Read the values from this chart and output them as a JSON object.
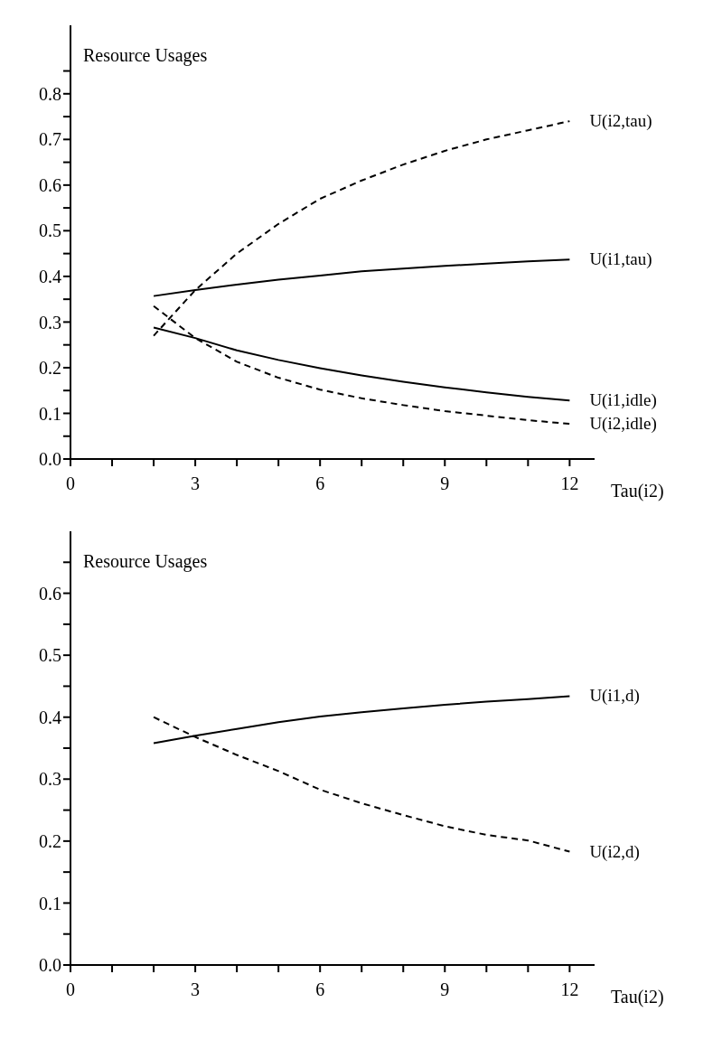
{
  "chart_data": [
    {
      "type": "line",
      "ylabel": "Resource Usages",
      "xlabel": "Tau(i2)",
      "xlim": [
        0,
        12.6
      ],
      "ylim": [
        0,
        0.95
      ],
      "xticks": [
        {
          "value": 0,
          "label": "0"
        },
        {
          "value": 1,
          "label": null
        },
        {
          "value": 2,
          "label": null
        },
        {
          "value": 3,
          "label": "3"
        },
        {
          "value": 4,
          "label": null
        },
        {
          "value": 5,
          "label": null
        },
        {
          "value": 6,
          "label": "6"
        },
        {
          "value": 7,
          "label": null
        },
        {
          "value": 8,
          "label": null
        },
        {
          "value": 9,
          "label": "9"
        },
        {
          "value": 10,
          "label": null
        },
        {
          "value": 11,
          "label": null
        },
        {
          "value": 12,
          "label": "12"
        }
      ],
      "yticks": [
        {
          "value": 0,
          "label": "0.0"
        },
        {
          "value": 0.05,
          "label": null
        },
        {
          "value": 0.1,
          "label": "0.1"
        },
        {
          "value": 0.15,
          "label": null
        },
        {
          "value": 0.2,
          "label": "0.2"
        },
        {
          "value": 0.25,
          "label": null
        },
        {
          "value": 0.3,
          "label": "0.3"
        },
        {
          "value": 0.35,
          "label": null
        },
        {
          "value": 0.4,
          "label": "0.4"
        },
        {
          "value": 0.45,
          "label": null
        },
        {
          "value": 0.5,
          "label": "0.5"
        },
        {
          "value": 0.55,
          "label": null
        },
        {
          "value": 0.6,
          "label": "0.6"
        },
        {
          "value": 0.65,
          "label": null
        },
        {
          "value": 0.7,
          "label": "0.7"
        },
        {
          "value": 0.75,
          "label": null
        },
        {
          "value": 0.8,
          "label": "0.8"
        },
        {
          "value": 0.85,
          "label": null
        }
      ],
      "x": [
        2,
        3,
        4,
        5,
        6,
        7,
        8,
        9,
        10,
        11,
        12
      ],
      "marker": "none",
      "series": [
        {
          "name": "U(i2,tau)",
          "color": "#000000",
          "line_style": "dashed",
          "values": [
            0.27,
            0.37,
            0.45,
            0.515,
            0.57,
            0.61,
            0.645,
            0.675,
            0.7,
            0.72,
            0.74
          ]
        },
        {
          "name": "U(i1,tau)",
          "color": "#000000",
          "line_style": "solid",
          "values": [
            0.357,
            0.37,
            0.382,
            0.393,
            0.402,
            0.411,
            0.417,
            0.423,
            0.428,
            0.433,
            0.437
          ]
        },
        {
          "name": "U(i1,idle)",
          "color": "#000000",
          "line_style": "solid",
          "values": [
            0.288,
            0.265,
            0.238,
            0.217,
            0.199,
            0.183,
            0.169,
            0.157,
            0.146,
            0.136,
            0.128
          ]
        },
        {
          "name": "U(i2,idle)",
          "color": "#000000",
          "line_style": "dashed",
          "values": [
            0.335,
            0.265,
            0.213,
            0.178,
            0.152,
            0.133,
            0.118,
            0.105,
            0.095,
            0.085,
            0.077
          ]
        }
      ]
    },
    {
      "type": "line",
      "ylabel": "Resource Usages",
      "xlabel": "Tau(i2)",
      "xlim": [
        0,
        12.6
      ],
      "ylim": [
        0,
        0.7
      ],
      "xticks": [
        {
          "value": 0,
          "label": "0"
        },
        {
          "value": 1,
          "label": null
        },
        {
          "value": 2,
          "label": null
        },
        {
          "value": 3,
          "label": "3"
        },
        {
          "value": 4,
          "label": null
        },
        {
          "value": 5,
          "label": null
        },
        {
          "value": 6,
          "label": "6"
        },
        {
          "value": 7,
          "label": null
        },
        {
          "value": 8,
          "label": null
        },
        {
          "value": 9,
          "label": "9"
        },
        {
          "value": 10,
          "label": null
        },
        {
          "value": 11,
          "label": null
        },
        {
          "value": 12,
          "label": "12"
        }
      ],
      "yticks": [
        {
          "value": 0,
          "label": "0.0"
        },
        {
          "value": 0.05,
          "label": null
        },
        {
          "value": 0.1,
          "label": "0.1"
        },
        {
          "value": 0.15,
          "label": null
        },
        {
          "value": 0.2,
          "label": "0.2"
        },
        {
          "value": 0.25,
          "label": null
        },
        {
          "value": 0.3,
          "label": "0.3"
        },
        {
          "value": 0.35,
          "label": null
        },
        {
          "value": 0.4,
          "label": "0.4"
        },
        {
          "value": 0.45,
          "label": null
        },
        {
          "value": 0.5,
          "label": "0.5"
        },
        {
          "value": 0.55,
          "label": null
        },
        {
          "value": 0.6,
          "label": "0.6"
        },
        {
          "value": 0.65,
          "label": null
        }
      ],
      "x": [
        2,
        3,
        4,
        5,
        6,
        7,
        8,
        9,
        10,
        11,
        12
      ],
      "marker": "none",
      "series": [
        {
          "name": "U(i1,d)",
          "color": "#000000",
          "line_style": "solid",
          "values": [
            0.358,
            0.37,
            0.381,
            0.392,
            0.401,
            0.408,
            0.414,
            0.42,
            0.425,
            0.429,
            0.434
          ]
        },
        {
          "name": "U(i2,d)",
          "color": "#000000",
          "line_style": "dashed",
          "values": [
            0.4,
            0.368,
            0.339,
            0.313,
            0.283,
            0.261,
            0.242,
            0.224,
            0.21,
            0.201,
            0.183
          ]
        }
      ]
    }
  ]
}
